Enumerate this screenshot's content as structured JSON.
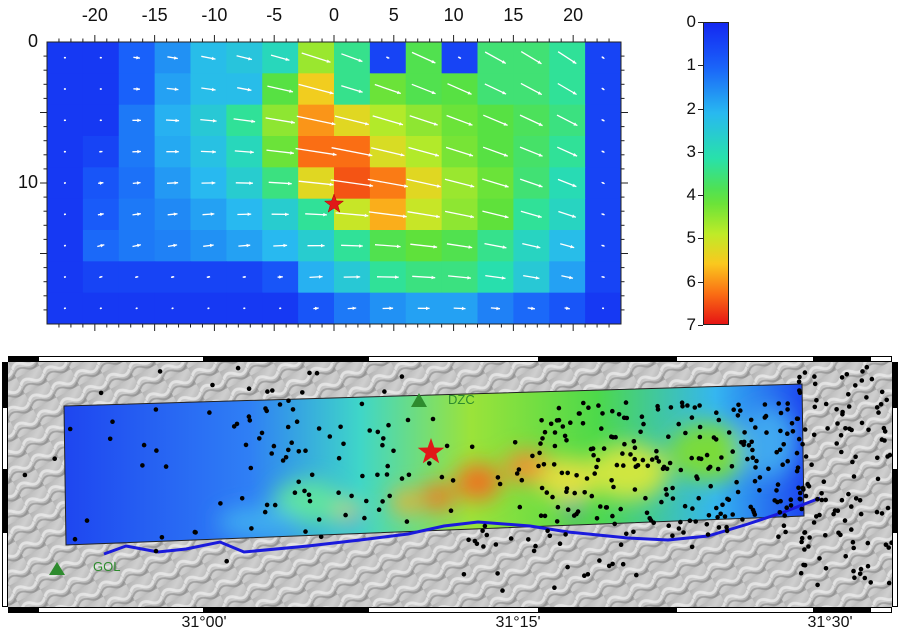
{
  "slip_map": {
    "x_tick_labels": [
      "-20",
      "-15",
      "-10",
      "-5",
      "0",
      "5",
      "10",
      "15",
      "20"
    ],
    "x_tick_values": [
      -20,
      -15,
      -10,
      -5,
      0,
      5,
      10,
      15,
      20
    ],
    "y_tick_labels": [
      "0",
      "10"
    ],
    "y_tick_values": [
      0,
      10
    ],
    "grid_columns": 16,
    "grid_rows": 9,
    "x_range": [
      -24,
      24
    ],
    "y_range": [
      0,
      20
    ],
    "cell_values": [
      [
        0.3,
        0.3,
        1.0,
        1.6,
        2.2,
        2.4,
        2.9,
        4.6,
        3.4,
        0.5,
        3.9,
        0.5,
        3.6,
        3.6,
        3.3,
        0.5
      ],
      [
        0.3,
        0.3,
        1.0,
        1.8,
        2.2,
        2.2,
        4.0,
        5.5,
        3.4,
        4.2,
        3.9,
        4.0,
        3.6,
        3.6,
        3.3,
        0.5
      ],
      [
        0.3,
        0.3,
        1.3,
        2.0,
        2.5,
        3.3,
        4.5,
        6.0,
        5.3,
        4.8,
        4.5,
        4.2,
        4.0,
        3.8,
        3.5,
        0.5
      ],
      [
        0.3,
        0.5,
        1.3,
        1.9,
        2.3,
        2.9,
        4.2,
        6.3,
        6.3,
        5.2,
        4.8,
        4.3,
        4.0,
        3.7,
        3.3,
        0.5
      ],
      [
        0.3,
        0.8,
        1.2,
        1.7,
        2.1,
        2.6,
        3.5,
        5.3,
        6.5,
        6.2,
        5.3,
        4.6,
        4.2,
        3.6,
        3.0,
        0.5
      ],
      [
        0.3,
        0.9,
        1.3,
        1.5,
        1.8,
        2.1,
        2.6,
        3.3,
        5.0,
        5.8,
        5.0,
        4.5,
        4.1,
        3.3,
        2.8,
        0.5
      ],
      [
        0.3,
        1.1,
        1.3,
        1.4,
        1.6,
        1.8,
        2.1,
        2.6,
        3.3,
        3.9,
        4.1,
        3.9,
        3.4,
        2.8,
        2.2,
        0.5
      ],
      [
        0.3,
        0.5,
        0.5,
        0.5,
        0.5,
        0.5,
        0.8,
        2.0,
        2.5,
        3.3,
        3.5,
        3.5,
        3.1,
        2.5,
        1.8,
        0.5
      ],
      [
        0.3,
        0.3,
        0.3,
        0.3,
        0.3,
        0.3,
        0.3,
        0.8,
        1.3,
        1.6,
        1.8,
        1.8,
        1.4,
        1.1,
        0.8,
        0.3
      ]
    ],
    "hypocenter": {
      "x": 0,
      "y": 11.5
    }
  },
  "colorbar": {
    "tick_labels": [
      "0",
      "1",
      "2",
      "3",
      "4",
      "5",
      "6",
      "7"
    ],
    "min": 0,
    "max": 7
  },
  "map": {
    "station_labels": {
      "dzc": "DZC",
      "gol": "GOL"
    },
    "station_color": "#2e8b2e",
    "longitude_labels": [
      "31°00'",
      "31°15'",
      "31°30'"
    ],
    "fault_color": "#1a1adc",
    "epicenter_color": "#e01818"
  }
}
